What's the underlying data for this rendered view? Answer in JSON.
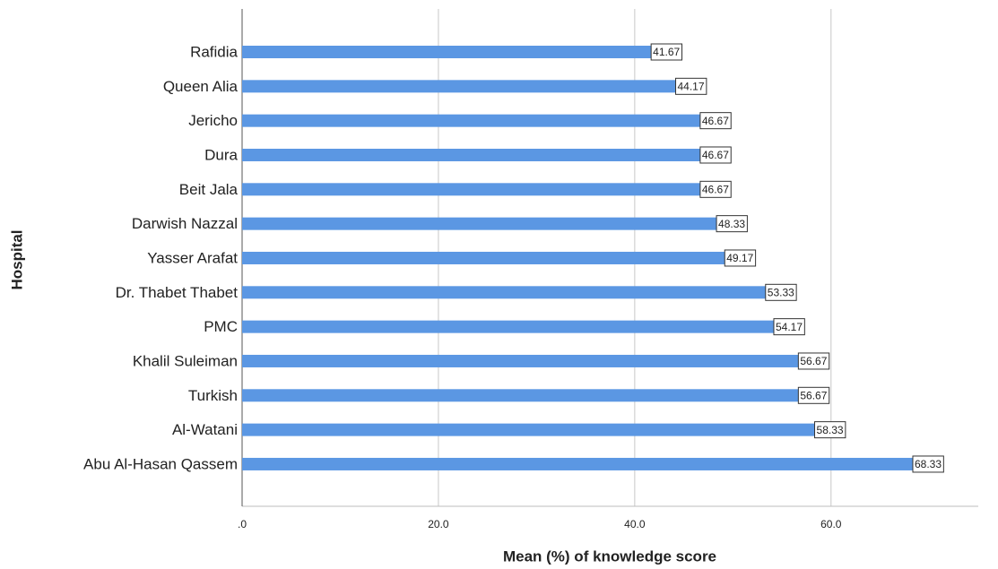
{
  "chart_data": {
    "type": "barh",
    "xlabel": "Mean (%) of knowledge score",
    "ylabel": "Hospital",
    "categories": [
      "Rafidia",
      "Queen Alia",
      "Jericho",
      "Dura",
      "Beit Jala",
      "Darwish Nazzal",
      "Yasser Arafat",
      "Dr. Thabet Thabet",
      "PMC",
      "Khalil Suleiman",
      "Turkish",
      "Al-Watani",
      "Abu Al-Hasan Qassem"
    ],
    "values": [
      41.67,
      44.17,
      46.67,
      46.67,
      46.67,
      48.33,
      49.17,
      53.33,
      54.17,
      56.67,
      56.67,
      58.33,
      68.33
    ],
    "color": "#5b97e3",
    "xlim": [
      0,
      75
    ],
    "xticks": [
      {
        "value": 0,
        "label": ".0"
      },
      {
        "value": 20,
        "label": "20.0"
      },
      {
        "value": 40,
        "label": "40.0"
      },
      {
        "value": 60,
        "label": "60.0"
      }
    ],
    "grid": true
  }
}
